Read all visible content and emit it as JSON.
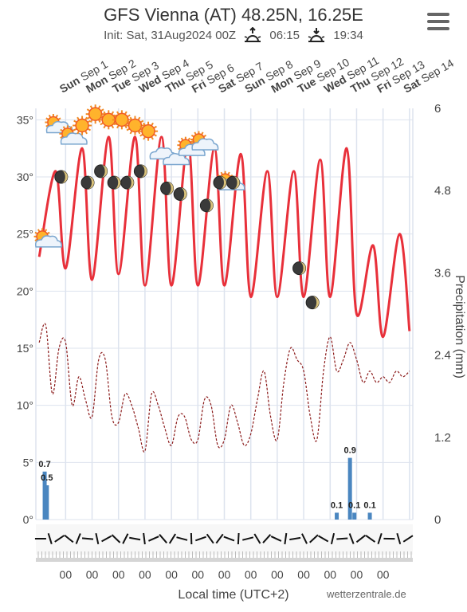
{
  "header": {
    "title": "GFS Vienna (AT) 48.25N, 16.25E",
    "init": "Init: Sat, 31Aug2024 00Z",
    "sunrise": "06:15",
    "sunset": "19:34"
  },
  "icons": {
    "menu": "hamburger-menu-icon",
    "sunrise": "sunrise-icon",
    "sunset": "sunset-icon"
  },
  "colors": {
    "temperature": "#e8303a",
    "dewpoint": "#8b1a1a",
    "precipitation": "#4a86c0",
    "grid": "#dde3ee"
  },
  "footer": {
    "xlabel": "Local time (UTC+2)",
    "credit": "wetterzentrale.de"
  },
  "chart_data": {
    "type": "line",
    "days": [
      {
        "dow": "Sun",
        "date": "Sep 1"
      },
      {
        "dow": "Mon",
        "date": "Sep 2"
      },
      {
        "dow": "Tue",
        "date": "Sep 3"
      },
      {
        "dow": "Wed",
        "date": "Sep 4"
      },
      {
        "dow": "Thu",
        "date": "Sep 5"
      },
      {
        "dow": "Fri",
        "date": "Sep 6"
      },
      {
        "dow": "Sat",
        "date": "Sep 7"
      },
      {
        "dow": "Sun",
        "date": "Sep 8"
      },
      {
        "dow": "Mon",
        "date": "Sep 9"
      },
      {
        "dow": "Tue",
        "date": "Sep 10"
      },
      {
        "dow": "Wed",
        "date": "Sep 11"
      },
      {
        "dow": "Thu",
        "date": "Sep 12"
      },
      {
        "dow": "Fri",
        "date": "Sep 13"
      },
      {
        "dow": "Sat",
        "date": "Sep 14"
      }
    ],
    "x_tick_label": "00",
    "y_left": {
      "ticks": [
        "0°",
        "5°",
        "10°",
        "15°",
        "20°",
        "25°",
        "30°",
        "35°"
      ],
      "values": [
        0,
        5,
        10,
        15,
        20,
        25,
        30,
        35
      ],
      "ylim": [
        0,
        36
      ]
    },
    "y_right": {
      "label": "Precipitation (mm)",
      "ticks": [
        "0",
        "1.2",
        "2.4",
        "3.6",
        "4.8",
        "6"
      ],
      "values": [
        0,
        1.2,
        2.4,
        3.6,
        4.8,
        6
      ],
      "ylim": [
        0,
        6
      ]
    },
    "series": [
      {
        "name": "temperature",
        "x_hours": [
          0,
          15,
          24,
          39,
          48,
          63,
          72,
          87,
          96,
          111,
          120,
          135,
          144,
          159,
          168,
          183,
          192,
          207,
          216,
          231,
          240,
          255,
          264,
          279,
          288,
          303,
          312,
          327,
          336
        ],
        "values": [
          23,
          30.5,
          22,
          32.5,
          21,
          33.5,
          21.5,
          33.5,
          20.5,
          33.5,
          20.5,
          33,
          20.5,
          32.5,
          20.5,
          32,
          19.5,
          30.5,
          19.5,
          30.5,
          19.5,
          31.5,
          19.5,
          32.5,
          18,
          24,
          16,
          25,
          16.5
        ]
      },
      {
        "name": "dewpoint",
        "x_hours": [
          0,
          6,
          12,
          18,
          24,
          30,
          36,
          42,
          48,
          54,
          60,
          66,
          72,
          78,
          84,
          90,
          96,
          102,
          108,
          114,
          120,
          126,
          132,
          138,
          144,
          150,
          156,
          162,
          168,
          174,
          180,
          186,
          192,
          198,
          204,
          210,
          216,
          222,
          228,
          234,
          240,
          246,
          252,
          258,
          264,
          270,
          276,
          282,
          288,
          294,
          300,
          306,
          312,
          318,
          324,
          330,
          336
        ],
        "values": [
          15.5,
          17,
          11,
          15,
          15.5,
          10,
          12.5,
          10.5,
          9,
          14,
          14,
          9,
          8.5,
          11,
          10,
          8,
          6,
          11,
          10,
          8,
          6.5,
          9,
          9,
          7,
          7,
          10.5,
          10,
          6.5,
          7,
          10,
          8.5,
          6.5,
          7.5,
          10.5,
          13,
          9,
          7,
          12,
          15,
          14,
          13,
          9,
          7,
          13,
          16,
          13,
          14,
          15.5,
          14,
          12,
          13,
          12,
          12.5,
          12,
          13,
          12.5,
          13
        ]
      },
      {
        "name": "precipitation",
        "bars": [
          {
            "x_hours": 5,
            "value": 0.7,
            "label": "0.7"
          },
          {
            "x_hours": 7,
            "value": 0.5,
            "label": "0.5"
          },
          {
            "x_hours": 270,
            "value": 0.1,
            "label": "0.1"
          },
          {
            "x_hours": 282,
            "value": 0.9,
            "label": "0.9"
          },
          {
            "x_hours": 286,
            "value": 0.1,
            "label": "0.1"
          },
          {
            "x_hours": 300,
            "value": 0.1,
            "label": "0.1"
          }
        ]
      }
    ],
    "day_markers": [
      {
        "hour": 15,
        "temp": 34.5,
        "type": "sun-cloud"
      },
      {
        "hour": 28,
        "temp": 33.5,
        "type": "sun-cloud"
      },
      {
        "hour": 39,
        "temp": 34.5,
        "type": "sun"
      },
      {
        "hour": 51,
        "temp": 35.5,
        "type": "sun"
      },
      {
        "hour": 63,
        "temp": 35,
        "type": "sun"
      },
      {
        "hour": 75,
        "temp": 35,
        "type": "sun"
      },
      {
        "hour": 87,
        "temp": 34.5,
        "type": "sun"
      },
      {
        "hour": 99,
        "temp": 34,
        "type": "sun"
      },
      {
        "hour": 111,
        "temp": 32,
        "type": "cloud"
      },
      {
        "hour": 123,
        "temp": 31.5,
        "type": "cloud"
      },
      {
        "hour": 135,
        "temp": 32.5,
        "type": "sun-cloud"
      },
      {
        "hour": 147,
        "temp": 33,
        "type": "sun-cloud"
      },
      {
        "hour": 171,
        "temp": 29.5,
        "type": "sun-cloud"
      },
      {
        "hour": 5,
        "temp": 24.5,
        "type": "sun-cloud"
      }
    ],
    "night_markers": [
      {
        "hour": 20,
        "temp": 30
      },
      {
        "hour": 44,
        "temp": 29.5
      },
      {
        "hour": 56,
        "temp": 30.5
      },
      {
        "hour": 68,
        "temp": 29.5
      },
      {
        "hour": 80,
        "temp": 29.5
      },
      {
        "hour": 92,
        "temp": 30.5
      },
      {
        "hour": 116,
        "temp": 29
      },
      {
        "hour": 128,
        "temp": 28.5
      },
      {
        "hour": 152,
        "temp": 27.5
      },
      {
        "hour": 164,
        "temp": 29.5
      },
      {
        "hour": 176,
        "temp": 29.5
      },
      {
        "hour": 236,
        "temp": 22
      },
      {
        "hour": 248,
        "temp": 19
      }
    ],
    "wind_barbs": 40,
    "grid": true
  }
}
